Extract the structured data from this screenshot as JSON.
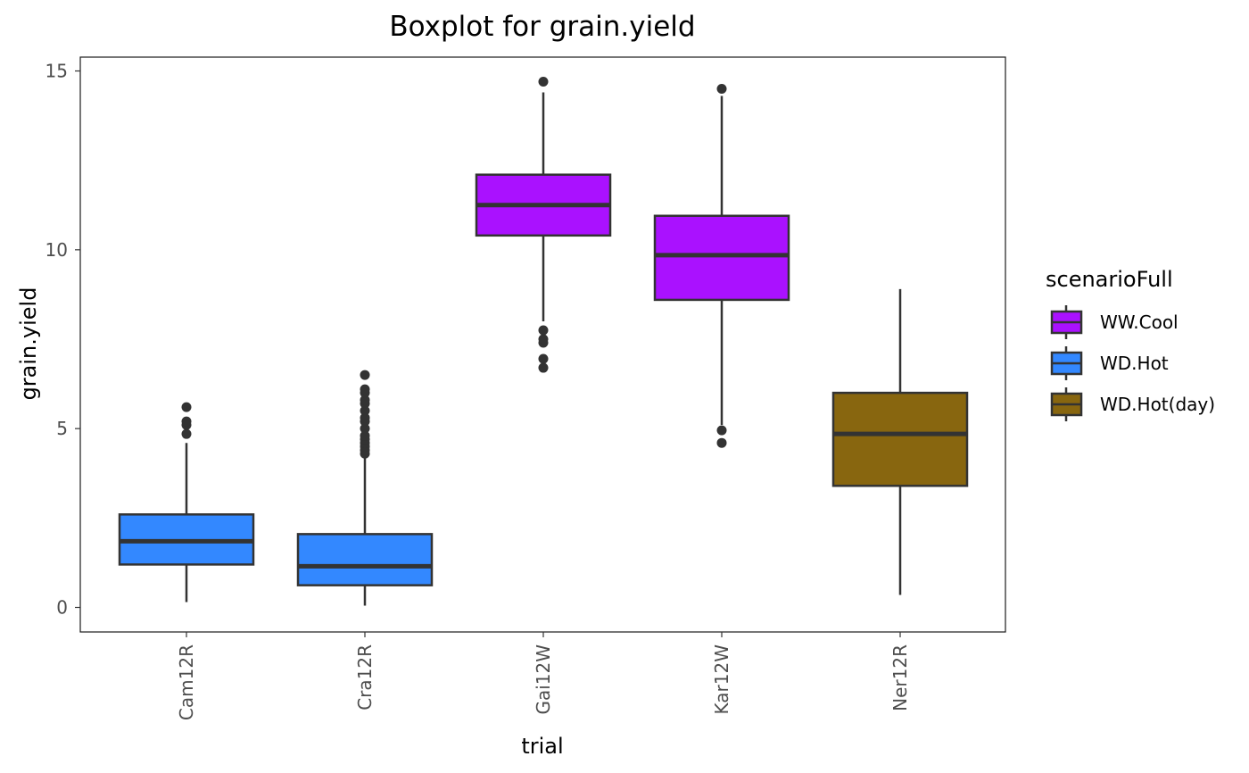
{
  "chart_data": {
    "type": "boxplot",
    "title": "Boxplot for grain.yield",
    "xlabel": "trial",
    "ylabel": "grain.yield",
    "ylim": [
      -0.6,
      15.4
    ],
    "yticks": [
      0,
      5,
      10,
      15
    ],
    "grid": false,
    "legend": {
      "title": "scenarioFull",
      "placement": "right",
      "entries": [
        {
          "label": "WW.Cool",
          "color": "#AA11FF"
        },
        {
          "label": "WD.Hot",
          "color": "#3388FF"
        },
        {
          "label": "WD.Hot(day)",
          "color": "#88660F"
        }
      ]
    },
    "categories": [
      "Cam12R",
      "Cra12R",
      "Gai12W",
      "Kar12W",
      "Ner12R"
    ],
    "boxes": [
      {
        "trial": "Cam12R",
        "scenario": "WD.Hot",
        "whisker_low": 0.15,
        "q1": 1.2,
        "median": 1.85,
        "q3": 2.6,
        "whisker_high": 4.6,
        "outliers": [
          4.85,
          5.1,
          5.2,
          5.6
        ]
      },
      {
        "trial": "Cra12R",
        "scenario": "WD.Hot",
        "whisker_low": 0.05,
        "q1": 0.62,
        "median": 1.15,
        "q3": 2.05,
        "whisker_high": 4.2,
        "outliers": [
          4.3,
          4.4,
          4.5,
          4.6,
          4.7,
          4.8,
          5.0,
          5.2,
          5.3,
          5.5,
          5.7,
          5.8,
          6.0,
          6.1,
          6.5
        ]
      },
      {
        "trial": "Gai12W",
        "scenario": "WW.Cool",
        "whisker_low": 8.0,
        "q1": 10.4,
        "median": 11.25,
        "q3": 12.1,
        "whisker_high": 14.4,
        "outliers": [
          6.7,
          6.95,
          7.4,
          7.5,
          7.75,
          14.7
        ]
      },
      {
        "trial": "Kar12W",
        "scenario": "WW.Cool",
        "whisker_low": 5.1,
        "q1": 8.6,
        "median": 9.85,
        "q3": 10.95,
        "whisker_high": 14.3,
        "outliers": [
          4.6,
          4.95,
          14.5
        ]
      },
      {
        "trial": "Ner12R",
        "scenario": "WD.Hot(day)",
        "whisker_low": 0.35,
        "q1": 3.4,
        "median": 4.85,
        "q3": 6.0,
        "whisker_high": 8.9,
        "outliers": []
      }
    ]
  }
}
